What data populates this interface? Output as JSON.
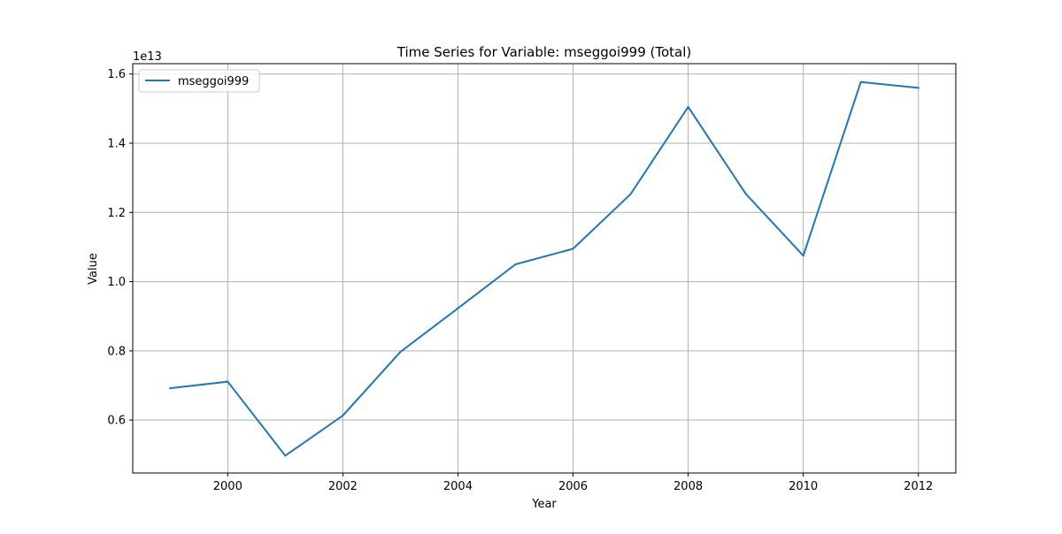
{
  "chart_data": {
    "type": "line",
    "title": "Time Series for Variable: mseggoi999 (Total)",
    "xlabel": "Year",
    "ylabel": "Value",
    "y_offset_label": "1e13",
    "xlim": [
      1998.35,
      2012.65
    ],
    "ylim": [
      0.447,
      1.63
    ],
    "x_ticks": [
      2000,
      2002,
      2004,
      2006,
      2008,
      2010,
      2012
    ],
    "x_tick_labels": [
      "2000",
      "2002",
      "2004",
      "2006",
      "2008",
      "2010",
      "2012"
    ],
    "y_ticks": [
      0.6,
      0.8,
      1.0,
      1.2,
      1.4,
      1.6
    ],
    "y_tick_labels": [
      "0.6",
      "0.8",
      "1.0",
      "1.2",
      "1.4",
      "1.6"
    ],
    "grid": true,
    "legend_position": "top-left",
    "series": [
      {
        "name": "mseggoi999",
        "color": "#1f77b4",
        "x": [
          1999,
          2000,
          2001,
          2002,
          2003,
          2004,
          2005,
          2006,
          2007,
          2008,
          2009,
          2010,
          2011,
          2012
        ],
        "values": [
          0.692,
          0.711,
          0.497,
          0.613,
          0.797,
          0.923,
          1.05,
          1.095,
          1.253,
          1.505,
          1.254,
          1.075,
          1.577,
          1.56
        ]
      }
    ]
  }
}
